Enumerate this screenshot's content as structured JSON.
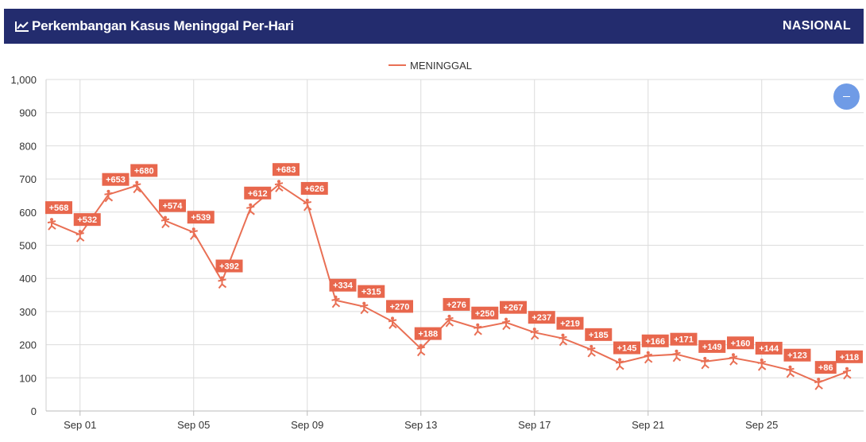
{
  "header": {
    "title": "Perkembangan Kasus Meninggal Per-Hari",
    "region": "NASIONAL",
    "icon": "line-chart-icon"
  },
  "colors": {
    "header_bg": "#232c6e",
    "series": "#e96f54",
    "label_bg": "#e8674d",
    "grid": "#dcdcdc",
    "zoom_button": "#6f9be6"
  },
  "zoom_button": {
    "icon": "minus-icon"
  },
  "chart_data": {
    "type": "line",
    "title": "",
    "xlabel": "",
    "ylabel": "",
    "ylim": [
      0,
      1000
    ],
    "yticks": [
      "0",
      "100",
      "200",
      "300",
      "400",
      "500",
      "600",
      "700",
      "800",
      "900",
      "1,000"
    ],
    "xticks": [
      "Sep 01",
      "Sep 05",
      "Sep 09",
      "Sep 13",
      "Sep 17",
      "Sep 21",
      "Sep 25"
    ],
    "grid": true,
    "legend": {
      "position": "top-center",
      "entries": [
        "MENINGGAL"
      ]
    },
    "x": [
      "Aug 31",
      "Sep 01",
      "Sep 02",
      "Sep 03",
      "Sep 04",
      "Sep 05",
      "Sep 06",
      "Sep 07",
      "Sep 08",
      "Sep 09",
      "Sep 10",
      "Sep 11",
      "Sep 12",
      "Sep 13",
      "Sep 14",
      "Sep 15",
      "Sep 16",
      "Sep 17",
      "Sep 18",
      "Sep 19",
      "Sep 20",
      "Sep 21",
      "Sep 22",
      "Sep 23",
      "Sep 24",
      "Sep 25",
      "Sep 26",
      "Sep 27",
      "Sep 28"
    ],
    "series": [
      {
        "name": "MENINGGAL",
        "values": [
          568,
          532,
          653,
          680,
          574,
          539,
          392,
          612,
          683,
          626,
          334,
          315,
          270,
          188,
          276,
          250,
          267,
          237,
          219,
          185,
          145,
          166,
          171,
          149,
          160,
          144,
          123,
          86,
          118
        ],
        "labels": [
          "+568",
          "+532",
          "+653",
          "+680",
          "+574",
          "+539",
          "+392",
          "+612",
          "+683",
          "+626",
          "+334",
          "+315",
          "+270",
          "+188",
          "+276",
          "+250",
          "+267",
          "+237",
          "+219",
          "+185",
          "+145",
          "+166",
          "+171",
          "+149",
          "+160",
          "+144",
          "+123",
          "+86",
          "+118"
        ]
      }
    ]
  }
}
